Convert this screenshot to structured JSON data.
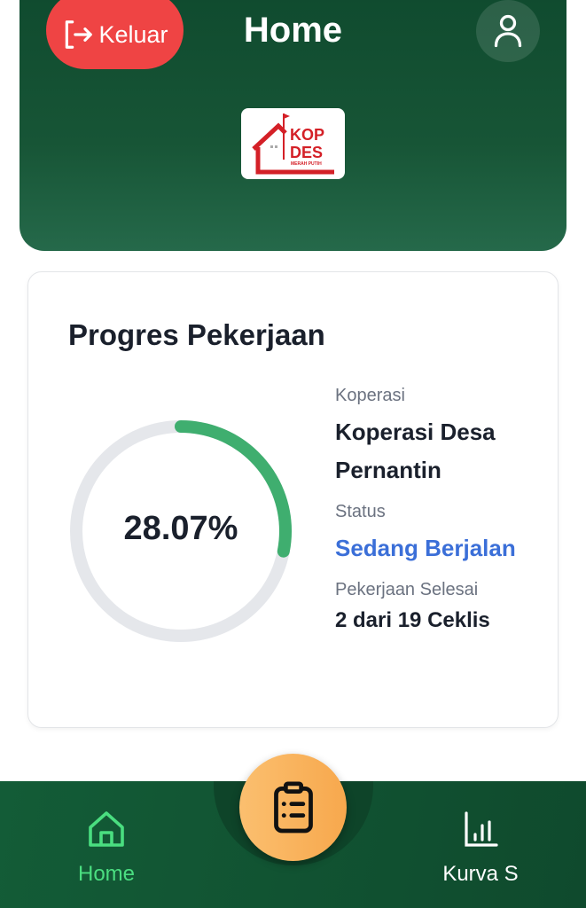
{
  "header": {
    "logout_label": "Keluar",
    "title": "Home",
    "logo_text": "KOP DES MERAH PUTIH"
  },
  "card": {
    "title": "Progres Pekerjaan",
    "progress_text": "28.07%",
    "progress_value": 28.07,
    "koperasi_label": "Koperasi",
    "koperasi_value": "Koperasi Desa Pernantin",
    "status_label": "Status",
    "status_value": "Sedang Berjalan",
    "done_label": "Pekerjaan Selesai",
    "done_value": "2 dari 19 Ceklis"
  },
  "colors": {
    "progress": "#3fae6f",
    "track": "#e5e7eb",
    "status": "#3b6fd8",
    "logout": "#ef4444",
    "header": "#175536",
    "fab": "#f7a84d"
  },
  "nav": {
    "items": [
      {
        "label": "Home",
        "icon": "home-icon",
        "active": true
      },
      {
        "label": "",
        "icon": "clipboard-icon"
      },
      {
        "label": "Kurva S",
        "icon": "bar-chart-icon"
      }
    ]
  }
}
